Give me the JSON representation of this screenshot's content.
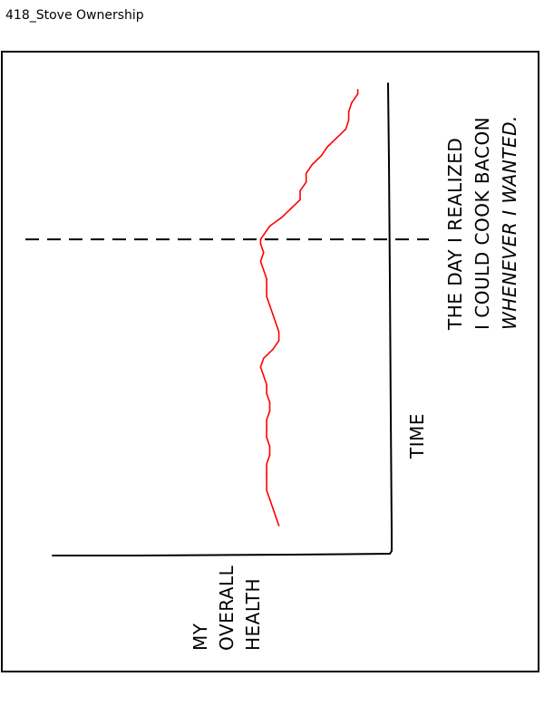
{
  "page_title": "418_Stove Ownership",
  "colors": {
    "line": "#ff0000",
    "ink": "#000000",
    "background": "#ffffff"
  },
  "chart_data": {
    "type": "line",
    "orientation": "rotated-90-counterclockwise",
    "xlabel": "TIME",
    "ylabel": "MY OVERALL HEALTH",
    "ylabel_lines": [
      "MY",
      "OVERALL",
      "HEALTH"
    ],
    "annotation_lines": [
      "THE DAY I REALIZED",
      "I COULD COOK BACON",
      "WHENEVER I WANTED."
    ],
    "xlim": [
      0,
      100
    ],
    "ylim": [
      0,
      100
    ],
    "event_x": 65,
    "series": [
      {
        "x": [
          0,
          2,
          4,
          6,
          8,
          10,
          12,
          14,
          16,
          18,
          20,
          22,
          24,
          26,
          28,
          30,
          32,
          34,
          36,
          38,
          40,
          42,
          44,
          46,
          48,
          50,
          52,
          54,
          56,
          58,
          60,
          62,
          64,
          65,
          66,
          68,
          70,
          72,
          74,
          76,
          78,
          80,
          82,
          84,
          86,
          88,
          90,
          92,
          94,
          96,
          98,
          99
        ],
        "values": [
          27,
          28,
          29,
          30,
          31,
          31,
          31,
          31,
          30,
          30,
          31,
          31,
          31,
          30,
          30,
          31,
          31,
          32,
          33,
          32,
          29,
          27,
          27,
          28,
          29,
          30,
          31,
          31,
          31,
          32,
          33,
          32,
          33,
          33,
          32,
          30,
          26,
          23,
          20,
          20,
          18,
          18,
          16,
          13,
          11,
          8,
          5,
          4,
          4,
          3,
          1,
          1
        ]
      }
    ]
  }
}
